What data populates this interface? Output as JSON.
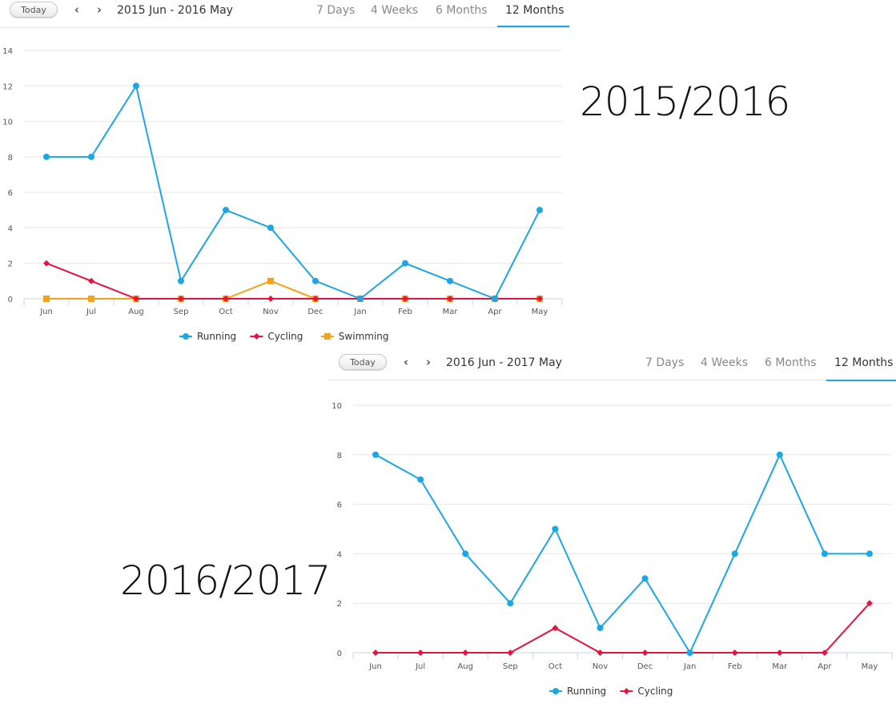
{
  "panels": [
    {
      "controls": {
        "today_label": "Today",
        "range_label": "2015 Jun - 2016 May",
        "tabs": [
          {
            "label": "7 Days",
            "active": false
          },
          {
            "label": "4 Weeks",
            "active": false
          },
          {
            "label": "6 Months",
            "active": false
          },
          {
            "label": "12 Months",
            "active": true
          }
        ]
      }
    },
    {
      "controls": {
        "today_label": "Today",
        "range_label": "2016 Jun - 2017 May",
        "tabs": [
          {
            "label": "7 Days",
            "active": false
          },
          {
            "label": "4 Weeks",
            "active": false
          },
          {
            "label": "6 Months",
            "active": false
          },
          {
            "label": "12 Months",
            "active": true
          }
        ]
      }
    }
  ],
  "annotations": [
    "2015/2016",
    "2016/2017"
  ],
  "colors": {
    "running": "#1ca7e4",
    "cycling": "#e8123f",
    "swimming": "#f4a21a",
    "accent": "#1ca7e4"
  },
  "chart_data": [
    {
      "type": "line",
      "categories": [
        "Jun",
        "Jul",
        "Aug",
        "Sep",
        "Oct",
        "Nov",
        "Dec",
        "Jan",
        "Feb",
        "Mar",
        "Apr",
        "May"
      ],
      "ylim": [
        0,
        14
      ],
      "yticks": [
        0,
        2,
        4,
        6,
        8,
        10,
        12,
        14
      ],
      "grid": true,
      "legend": "bottom-center",
      "series": [
        {
          "name": "Running",
          "marker": "circle",
          "values": [
            8,
            8,
            12,
            1,
            5,
            4,
            1,
            0,
            2,
            1,
            0,
            5
          ]
        },
        {
          "name": "Cycling",
          "marker": "diamond",
          "values": [
            2,
            1,
            0,
            0,
            0,
            0,
            0,
            0,
            0,
            0,
            0,
            0
          ]
        },
        {
          "name": "Swimming",
          "marker": "square",
          "values": [
            0,
            0,
            0,
            0,
            0,
            1,
            0,
            0,
            0,
            0,
            0,
            0
          ]
        }
      ]
    },
    {
      "type": "line",
      "categories": [
        "Jun",
        "Jul",
        "Aug",
        "Sep",
        "Oct",
        "Nov",
        "Dec",
        "Jan",
        "Feb",
        "Mar",
        "Apr",
        "May"
      ],
      "ylim": [
        0,
        10
      ],
      "yticks": [
        0,
        2,
        4,
        6,
        8,
        10
      ],
      "grid": true,
      "legend": "bottom-center",
      "series": [
        {
          "name": "Running",
          "marker": "circle",
          "values": [
            8,
            7,
            4,
            2,
            5,
            1,
            3,
            0,
            4,
            8,
            4,
            4
          ]
        },
        {
          "name": "Cycling",
          "marker": "diamond",
          "values": [
            0,
            0,
            0,
            0,
            1,
            0,
            0,
            0,
            0,
            0,
            0,
            2
          ]
        }
      ]
    }
  ]
}
